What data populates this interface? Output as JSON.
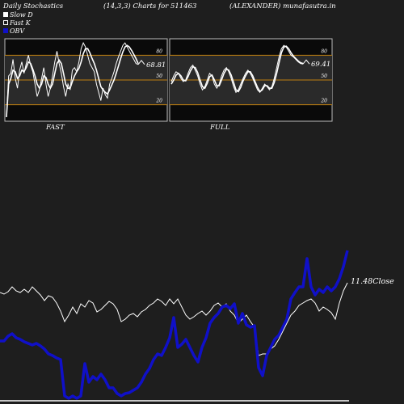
{
  "header": {
    "left": "Daily Stochastics",
    "center": "(14,3,3) Charts for 511463",
    "right": "(ALEXANDER) munafasutra.in"
  },
  "legend": [
    {
      "label": "Slow  D",
      "color": "#ffffff"
    },
    {
      "label": "Fast K",
      "color": "#ffffff"
    },
    {
      "label": "OBV",
      "color": "#1010c8"
    }
  ],
  "colors": {
    "background": "#1e1e1e",
    "panel": "#0a0a0a",
    "level_line": "#c08010",
    "price": "#ffffff",
    "obv": "#1010c8"
  },
  "chart_data": [
    {
      "type": "line",
      "title": "FAST",
      "ylim": [
        0,
        100
      ],
      "levels": [
        20,
        50,
        80
      ],
      "tick_labels": [
        "80",
        "50",
        "20"
      ],
      "last_value_label": "68.81",
      "series": [
        {
          "name": "Fast K",
          "values": [
            5,
            55,
            58,
            75,
            52,
            40,
            62,
            72,
            58,
            70,
            80,
            68,
            60,
            45,
            30,
            38,
            52,
            65,
            45,
            30,
            40,
            55,
            72,
            85,
            70,
            58,
            42,
            30,
            45,
            38,
            62,
            65,
            60,
            72,
            88,
            95,
            90,
            80,
            70,
            65,
            60,
            45,
            35,
            25,
            40,
            32,
            28,
            45,
            52,
            60,
            70,
            78,
            85,
            92,
            95,
            90,
            85,
            80,
            75,
            70,
            68.81
          ]
        },
        {
          "name": "Slow D",
          "values": [
            5,
            45,
            52,
            62,
            60,
            52,
            55,
            62,
            60,
            65,
            72,
            70,
            63,
            55,
            45,
            40,
            45,
            55,
            53,
            45,
            40,
            45,
            58,
            70,
            74,
            70,
            58,
            45,
            40,
            40,
            48,
            55,
            60,
            64,
            72,
            82,
            88,
            88,
            83,
            76,
            70,
            62,
            52,
            42,
            38,
            35,
            33,
            38,
            44,
            50,
            58,
            67,
            76,
            84,
            90,
            92,
            90,
            86,
            81,
            76,
            70
          ]
        }
      ]
    },
    {
      "type": "line",
      "title": "FULL",
      "ylim": [
        0,
        100
      ],
      "levels": [
        20,
        50,
        80
      ],
      "tick_labels": [
        "80",
        "50",
        "20"
      ],
      "last_value_label": "69.41",
      "series": [
        {
          "name": "Fast K",
          "values": [
            48,
            55,
            60,
            58,
            52,
            48,
            50,
            58,
            65,
            68,
            62,
            55,
            45,
            38,
            42,
            50,
            58,
            55,
            45,
            40,
            45,
            55,
            62,
            65,
            60,
            52,
            42,
            35,
            38,
            45,
            52,
            58,
            62,
            58,
            52,
            45,
            38,
            35,
            40,
            45,
            42,
            38,
            42,
            52,
            65,
            78,
            88,
            92,
            90,
            85,
            80,
            78,
            75,
            72,
            70,
            69.41
          ]
        },
        {
          "name": "Slow D",
          "values": [
            45,
            50,
            56,
            58,
            55,
            50,
            49,
            54,
            61,
            66,
            65,
            59,
            50,
            42,
            40,
            46,
            54,
            56,
            50,
            43,
            43,
            50,
            58,
            63,
            62,
            56,
            47,
            38,
            36,
            41,
            49,
            55,
            60,
            60,
            55,
            48,
            41,
            36,
            38,
            43,
            43,
            40,
            40,
            47,
            58,
            71,
            83,
            90,
            91,
            88,
            83,
            79,
            76,
            73,
            71,
            70
          ]
        }
      ]
    },
    {
      "type": "line",
      "title": "",
      "close_label": "11.48",
      "close_label_suffix": "Close",
      "series": [
        {
          "name": "Close",
          "values": [
            [
              0,
              362
            ],
            [
              5,
              364
            ],
            [
              10,
              361
            ],
            [
              15,
              355
            ],
            [
              20,
              360
            ],
            [
              25,
              362
            ],
            [
              30,
              358
            ],
            [
              35,
              362
            ],
            [
              40,
              355
            ],
            [
              45,
              360
            ],
            [
              50,
              365
            ],
            [
              55,
              372
            ],
            [
              60,
              366
            ],
            [
              65,
              368
            ],
            [
              70,
              375
            ],
            [
              75,
              385
            ],
            [
              80,
              398
            ],
            [
              85,
              390
            ],
            [
              90,
              380
            ],
            [
              95,
              388
            ],
            [
              100,
              376
            ],
            [
              105,
              380
            ],
            [
              110,
              372
            ],
            [
              115,
              375
            ],
            [
              120,
              386
            ],
            [
              125,
              383
            ],
            [
              130,
              378
            ],
            [
              135,
              373
            ],
            [
              140,
              376
            ],
            [
              145,
              383
            ],
            [
              150,
              398
            ],
            [
              155,
              395
            ],
            [
              160,
              390
            ],
            [
              165,
              388
            ],
            [
              170,
              392
            ],
            [
              175,
              386
            ],
            [
              180,
              383
            ],
            [
              185,
              378
            ],
            [
              190,
              375
            ],
            [
              195,
              370
            ],
            [
              200,
              373
            ],
            [
              205,
              378
            ],
            [
              210,
              370
            ],
            [
              215,
              376
            ],
            [
              220,
              370
            ],
            [
              225,
              380
            ],
            [
              230,
              390
            ],
            [
              235,
              395
            ],
            [
              240,
              392
            ],
            [
              245,
              388
            ],
            [
              250,
              385
            ],
            [
              255,
              390
            ],
            [
              260,
              385
            ],
            [
              265,
              378
            ],
            [
              270,
              375
            ],
            [
              275,
              380
            ],
            [
              280,
              376
            ],
            [
              285,
              385
            ],
            [
              290,
              390
            ],
            [
              295,
              400
            ],
            [
              300,
              395
            ],
            [
              305,
              390
            ],
            [
              310,
              398
            ],
            [
              315,
              405
            ],
            [
              320,
              440
            ],
            [
              325,
              438
            ],
            [
              330,
              438
            ],
            [
              335,
              432
            ],
            [
              340,
              428
            ],
            [
              345,
              420
            ],
            [
              350,
              410
            ],
            [
              355,
              400
            ],
            [
              360,
              390
            ],
            [
              365,
              385
            ],
            [
              370,
              378
            ],
            [
              375,
              375
            ],
            [
              380,
              372
            ],
            [
              385,
              370
            ],
            [
              390,
              375
            ],
            [
              395,
              385
            ],
            [
              400,
              380
            ],
            [
              405,
              383
            ],
            [
              410,
              387
            ],
            [
              415,
              395
            ],
            [
              420,
              375
            ],
            [
              425,
              360
            ],
            [
              430,
              350
            ]
          ]
        },
        {
          "name": "OBV",
          "values": [
            [
              0,
              422
            ],
            [
              5,
              422
            ],
            [
              10,
              416
            ],
            [
              15,
              413
            ],
            [
              20,
              418
            ],
            [
              25,
              420
            ],
            [
              30,
              423
            ],
            [
              35,
              425
            ],
            [
              40,
              427
            ],
            [
              45,
              425
            ],
            [
              50,
              428
            ],
            [
              55,
              432
            ],
            [
              60,
              438
            ],
            [
              65,
              440
            ],
            [
              70,
              443
            ],
            [
              75,
              445
            ],
            [
              80,
              490
            ],
            [
              85,
              493
            ],
            [
              90,
              490
            ],
            [
              95,
              493
            ],
            [
              100,
              490
            ],
            [
              105,
              450
            ],
            [
              110,
              473
            ],
            [
              115,
              466
            ],
            [
              120,
              470
            ],
            [
              125,
              463
            ],
            [
              130,
              470
            ],
            [
              135,
              480
            ],
            [
              140,
              480
            ],
            [
              145,
              487
            ],
            [
              150,
              490
            ],
            [
              155,
              487
            ],
            [
              160,
              486
            ],
            [
              165,
              483
            ],
            [
              170,
              480
            ],
            [
              175,
              473
            ],
            [
              180,
              463
            ],
            [
              185,
              456
            ],
            [
              190,
              445
            ],
            [
              195,
              438
            ],
            [
              200,
              440
            ],
            [
              205,
              430
            ],
            [
              210,
              418
            ],
            [
              215,
              393
            ],
            [
              220,
              430
            ],
            [
              225,
              426
            ],
            [
              230,
              420
            ],
            [
              235,
              430
            ],
            [
              240,
              440
            ],
            [
              245,
              448
            ],
            [
              250,
              430
            ],
            [
              255,
              418
            ],
            [
              260,
              400
            ],
            [
              265,
              393
            ],
            [
              270,
              388
            ],
            [
              275,
              380
            ],
            [
              280,
              378
            ],
            [
              285,
              382
            ],
            [
              290,
              376
            ],
            [
              295,
              400
            ],
            [
              300,
              388
            ],
            [
              305,
              402
            ],
            [
              310,
              405
            ],
            [
              315,
              403
            ],
            [
              320,
              455
            ],
            [
              325,
              465
            ],
            [
              330,
              440
            ],
            [
              335,
              430
            ],
            [
              340,
              420
            ],
            [
              345,
              415
            ],
            [
              350,
              405
            ],
            [
              355,
              395
            ],
            [
              360,
              370
            ],
            [
              365,
              362
            ],
            [
              370,
              355
            ],
            [
              375,
              355
            ],
            [
              380,
              320
            ],
            [
              385,
              355
            ],
            [
              390,
              365
            ],
            [
              395,
              358
            ],
            [
              400,
              362
            ],
            [
              405,
              355
            ],
            [
              410,
              360
            ],
            [
              415,
              355
            ],
            [
              420,
              345
            ],
            [
              425,
              330
            ],
            [
              430,
              310
            ]
          ]
        }
      ]
    }
  ]
}
